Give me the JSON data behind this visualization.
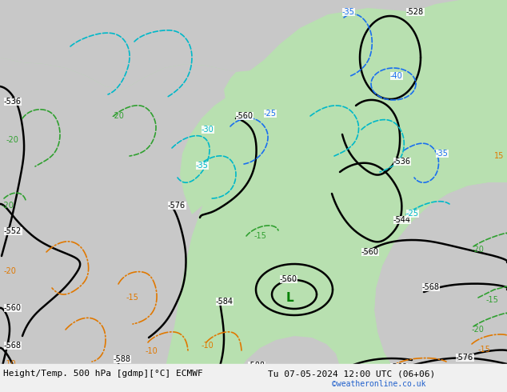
{
  "title_left": "Height/Temp. 500 hPa [gdmp][°C] ECMWF",
  "title_right": "Tu 07-05-2024 12:00 UTC (06+06)",
  "watermark": "©weatheronline.co.uk",
  "bg_color": "#b8e0b0",
  "land_gray_color": "#c8c8c8",
  "sea_green_color": "#b8e0b0",
  "black_contour_color": "#000000",
  "blue_contour_color": "#1a6fef",
  "cyan_contour_color": "#00b8c8",
  "green_contour_color": "#30a030",
  "orange_contour_color": "#e07800",
  "label_fontsize": 7,
  "title_fontsize": 8,
  "watermark_color": "#2060cc",
  "bottom_bar_color": "#f0f0f0"
}
